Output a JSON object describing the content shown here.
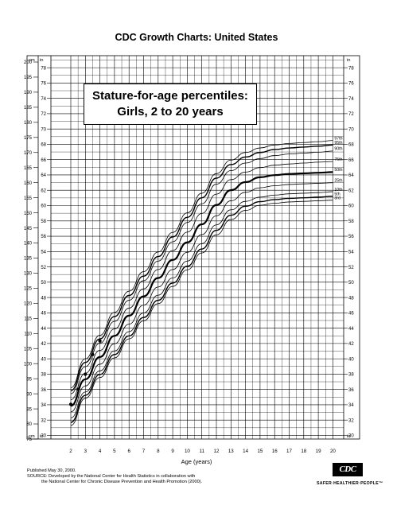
{
  "header": {
    "title": "CDC Growth Charts: United States"
  },
  "chart_data": {
    "type": "line",
    "title": "Stature-for-age percentiles:",
    "subtitle": "Girls, 2 to 20 years",
    "xlabel": "Age (years)",
    "left_unit_top": "cm",
    "left_unit_bottom": "cm",
    "inner_unit_top": "in",
    "inner_unit_bottom": "in",
    "right_unit_top": "in",
    "right_unit_bottom": "in",
    "x_ticks": [
      2,
      3,
      4,
      5,
      6,
      7,
      8,
      9,
      10,
      11,
      12,
      13,
      14,
      15,
      16,
      17,
      18,
      19,
      20
    ],
    "cm_ticks": [
      75,
      80,
      85,
      90,
      95,
      100,
      105,
      110,
      115,
      120,
      125,
      130,
      135,
      140,
      145,
      150,
      155,
      160,
      165,
      170,
      175,
      180,
      185,
      190,
      195,
      200
    ],
    "in_ticks": [
      30,
      32,
      34,
      36,
      38,
      40,
      42,
      44,
      46,
      48,
      50,
      52,
      54,
      56,
      58,
      60,
      62,
      64,
      66,
      68,
      70,
      72,
      74,
      76,
      78
    ],
    "xlim": [
      2,
      20
    ],
    "ylim_cm": [
      75,
      200
    ],
    "x": [
      2,
      3,
      4,
      5,
      6,
      7,
      8,
      9,
      10,
      11,
      12,
      13,
      14,
      15,
      16,
      17,
      18,
      19,
      20
    ],
    "series": [
      {
        "name": "97th",
        "values": [
          92.0,
          101.6,
          109.4,
          117.0,
          124.0,
          130.5,
          137.0,
          143.5,
          150.0,
          156.5,
          163.0,
          167.5,
          170.0,
          171.5,
          172.5,
          173.0,
          173.3,
          173.6,
          174.0
        ]
      },
      {
        "name": "95th",
        "values": [
          91.0,
          100.4,
          108.2,
          115.6,
          122.6,
          129.0,
          135.5,
          142.0,
          148.5,
          155.0,
          161.5,
          166.0,
          168.5,
          170.0,
          171.0,
          171.5,
          171.8,
          172.1,
          172.5
        ]
      },
      {
        "name": "90th",
        "values": [
          90.0,
          99.0,
          106.8,
          114.0,
          121.0,
          127.5,
          134.0,
          140.4,
          146.8,
          153.0,
          159.5,
          164.0,
          166.5,
          168.0,
          169.0,
          169.5,
          169.8,
          170.1,
          170.5
        ]
      },
      {
        "name": "75th",
        "values": [
          88.0,
          96.8,
          104.4,
          111.5,
          118.4,
          124.8,
          131.2,
          137.5,
          143.6,
          149.8,
          156.2,
          161.0,
          163.5,
          165.0,
          165.8,
          166.2,
          166.5,
          166.8,
          167.0
        ]
      },
      {
        "name": "50th",
        "values": [
          86.0,
          94.8,
          102.2,
          109.2,
          115.9,
          122.3,
          128.4,
          134.4,
          140.2,
          146.2,
          152.6,
          157.5,
          160.2,
          161.8,
          162.5,
          162.9,
          163.1,
          163.3,
          163.5
        ]
      },
      {
        "name": "25th",
        "values": [
          84.0,
          92.6,
          99.8,
          106.6,
          113.1,
          119.4,
          125.4,
          131.2,
          136.9,
          142.8,
          149.0,
          154.0,
          156.8,
          158.3,
          159.0,
          159.4,
          159.6,
          159.8,
          160.0
        ]
      },
      {
        "name": "10th",
        "values": [
          82.0,
          90.6,
          97.6,
          104.2,
          110.6,
          116.8,
          122.7,
          128.4,
          134.0,
          139.8,
          146.0,
          151.0,
          153.8,
          155.2,
          155.9,
          156.3,
          156.5,
          156.7,
          157.0
        ]
      },
      {
        "name": "5th",
        "values": [
          80.5,
          89.5,
          96.4,
          103.0,
          109.2,
          115.3,
          121.0,
          126.7,
          132.3,
          138.0,
          144.2,
          149.2,
          152.2,
          153.7,
          154.4,
          154.8,
          155.0,
          155.2,
          155.5
        ]
      },
      {
        "name": "3rd",
        "values": [
          79.5,
          88.5,
          95.4,
          101.9,
          108.2,
          114.2,
          119.9,
          125.6,
          131.1,
          136.7,
          142.7,
          147.8,
          150.8,
          152.5,
          153.2,
          153.6,
          153.8,
          154.0,
          154.2
        ]
      }
    ],
    "highlighted_series": [
      "50th",
      "5th",
      "95th"
    ],
    "points": [
      {
        "x": 2.0,
        "y": 86.5
      },
      {
        "x": 2.5,
        "y": 91.5
      },
      {
        "x": 3.0,
        "y": 96.5
      },
      {
        "x": 3.5,
        "y": 103.0
      },
      {
        "x": 4.0,
        "y": 107.5
      }
    ]
  },
  "footer": {
    "line1": "Published May 30, 2000.",
    "line2": "SOURCE: Developed by the National Center for Health Statistics in collaboration with",
    "line3": "the National Center for Chronic Disease Prevention and Health Promotion (2000).",
    "logo": "CDC",
    "slogan": "SAFER·HEALTHIER·PEOPLE™"
  }
}
